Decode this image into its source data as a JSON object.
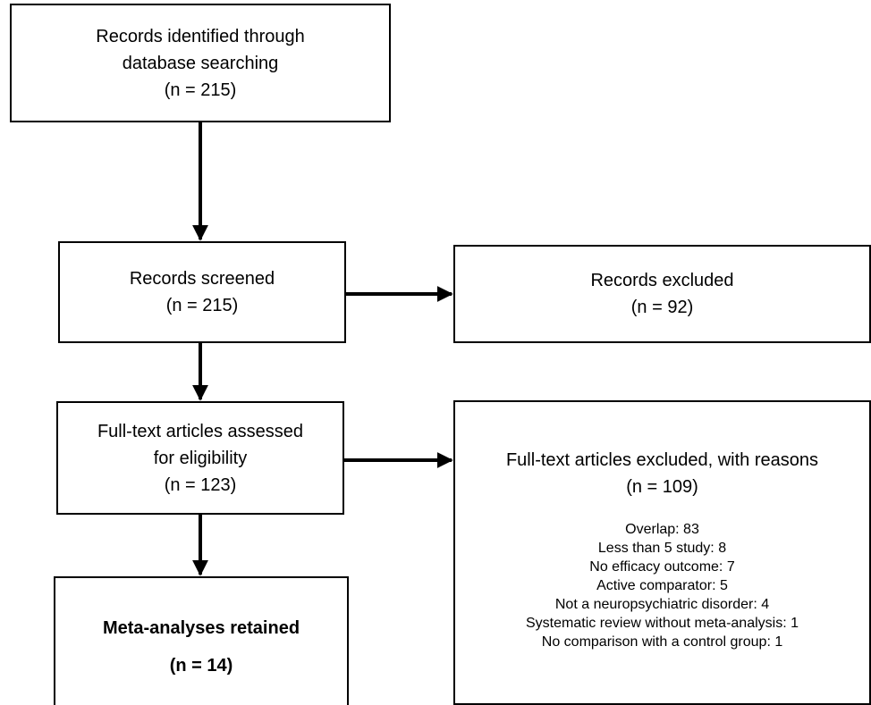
{
  "boxes": {
    "identified": {
      "line1": "Records identified through",
      "line2": "database searching",
      "count": "(n = 215)"
    },
    "screened": {
      "label": "Records screened",
      "count": "(n = 215)"
    },
    "excluded": {
      "label": "Records excluded",
      "count": "(n = 92)"
    },
    "fulltext": {
      "line1": "Full-text articles assessed",
      "line2": "for eligibility",
      "count": "(n =  123)"
    },
    "fulltext_excluded": {
      "label": "Full-text articles excluded, with reasons",
      "count": "(n = 109)",
      "reasons": [
        "Overlap: 83",
        "Less than 5 study: 8",
        "No efficacy outcome: 7",
        "Active comparator: 5",
        "Not a neuropsychiatric disorder: 4",
        "Systematic review without meta-analysis: 1",
        "No comparison with a control group: 1"
      ]
    },
    "retained": {
      "label": "Meta-analyses retained",
      "count": "(n = 14)"
    }
  }
}
